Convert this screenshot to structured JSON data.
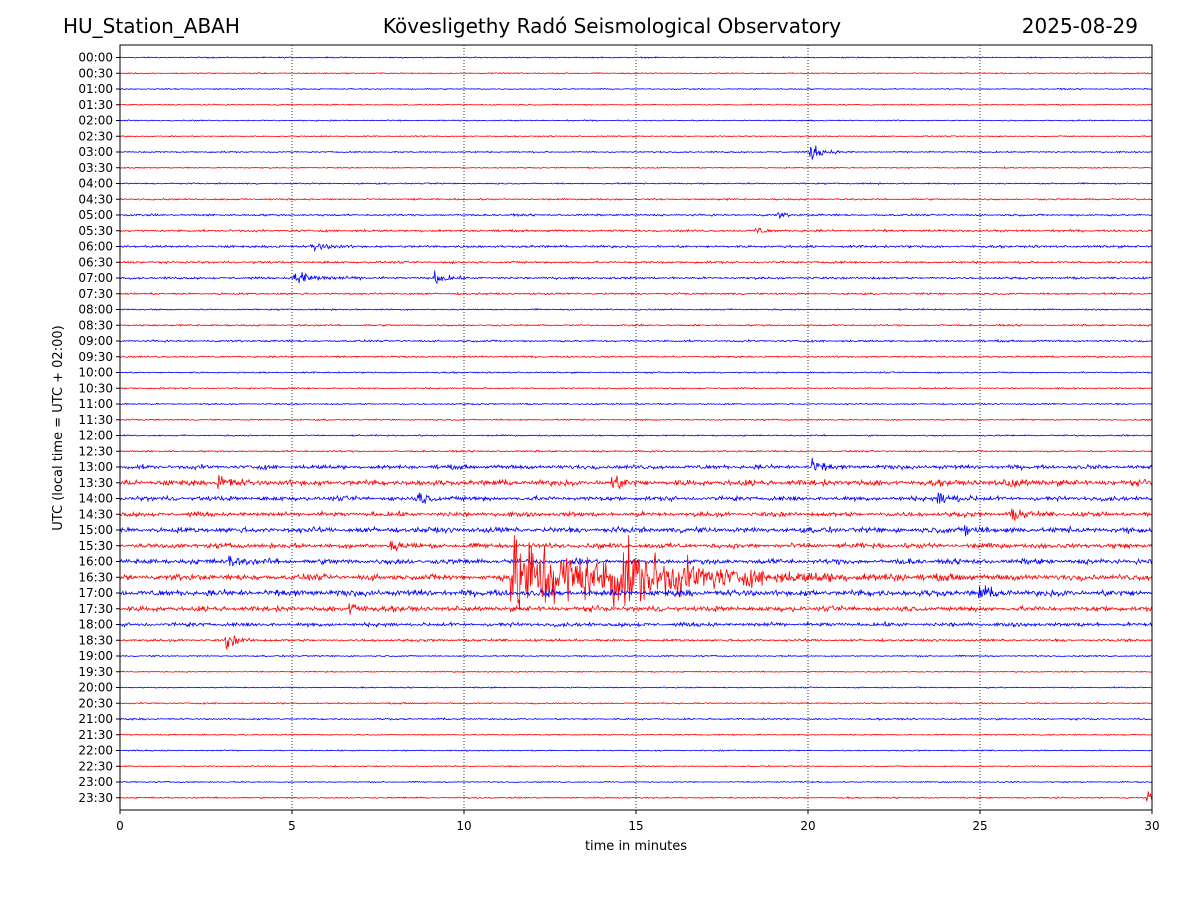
{
  "header": {
    "station": "HU_Station_ABAH",
    "observatory": "Kövesligethy Radó Seismological Observatory",
    "date": "2025-08-29"
  },
  "chart_data": {
    "type": "line",
    "title": "Kövesligethy Radó Seismological Observatory",
    "xlabel": "time in minutes",
    "ylabel": "UTC (local time = UTC + 02:00)",
    "xlim": [
      0,
      30
    ],
    "x_ticks": [
      0,
      5,
      10,
      15,
      20,
      25,
      30
    ],
    "grid_x": "dotted vertical lines at 5-minute ticks",
    "colors": {
      "even_rows": "#0000ff",
      "odd_rows": "#ff0000"
    },
    "rows": [
      "00:00",
      "00:30",
      "01:00",
      "01:30",
      "02:00",
      "02:30",
      "03:00",
      "03:30",
      "04:00",
      "04:30",
      "05:00",
      "05:30",
      "06:00",
      "06:30",
      "07:00",
      "07:30",
      "08:00",
      "08:30",
      "09:00",
      "09:30",
      "10:00",
      "10:30",
      "11:00",
      "11:30",
      "12:00",
      "12:30",
      "13:00",
      "13:30",
      "14:00",
      "14:30",
      "15:00",
      "15:30",
      "16:00",
      "16:30",
      "17:00",
      "17:30",
      "18:00",
      "18:30",
      "19:00",
      "19:30",
      "20:00",
      "20:30",
      "21:00",
      "21:30",
      "22:00",
      "22:30",
      "23:00",
      "23:30"
    ],
    "noise_level": [
      0.5,
      0.5,
      0.5,
      0.5,
      0.5,
      0.5,
      0.6,
      0.5,
      0.6,
      0.7,
      0.8,
      0.9,
      1.0,
      0.9,
      0.9,
      0.8,
      0.6,
      0.7,
      0.8,
      0.7,
      0.6,
      0.6,
      0.6,
      0.6,
      0.6,
      0.7,
      1.3,
      1.8,
      1.4,
      1.4,
      1.7,
      1.5,
      1.6,
      1.8,
      2.0,
      1.6,
      1.2,
      1.0,
      0.6,
      0.5,
      0.5,
      0.6,
      0.7,
      0.5,
      0.5,
      0.5,
      0.5,
      0.6
    ],
    "events": [
      {
        "row": "03:00",
        "minute": 20.1,
        "amplitude": 7,
        "decay": 0.3
      },
      {
        "row": "05:00",
        "minute": 19.1,
        "amplitude": 3,
        "decay": 0.2
      },
      {
        "row": "05:30",
        "minute": 18.5,
        "amplitude": 4,
        "decay": 0.2
      },
      {
        "row": "06:00",
        "minute": 5.6,
        "amplitude": 5,
        "decay": 0.3
      },
      {
        "row": "07:00",
        "minute": 5.1,
        "amplitude": 6,
        "decay": 0.6
      },
      {
        "row": "07:00",
        "minute": 9.2,
        "amplitude": 5,
        "decay": 0.3
      },
      {
        "row": "13:00",
        "minute": 20.1,
        "amplitude": 5,
        "decay": 0.3
      },
      {
        "row": "13:30",
        "minute": 2.9,
        "amplitude": 6,
        "decay": 0.3
      },
      {
        "row": "13:30",
        "minute": 14.3,
        "amplitude": 6,
        "decay": 0.3
      },
      {
        "row": "13:30",
        "minute": 25.8,
        "amplitude": 5,
        "decay": 0.3
      },
      {
        "row": "14:00",
        "minute": 8.7,
        "amplitude": 5,
        "decay": 0.3
      },
      {
        "row": "14:00",
        "minute": 23.8,
        "amplitude": 5,
        "decay": 0.4
      },
      {
        "row": "14:30",
        "minute": 25.9,
        "amplitude": 4,
        "decay": 0.4
      },
      {
        "row": "15:00",
        "minute": 24.6,
        "amplitude": 5,
        "decay": 0.3
      },
      {
        "row": "15:30",
        "minute": 7.9,
        "amplitude": 5,
        "decay": 0.3
      },
      {
        "row": "16:00",
        "minute": 3.2,
        "amplitude": 5,
        "decay": 0.3
      },
      {
        "row": "16:30",
        "minute": 11.4,
        "amplitude": 38,
        "decay": 2.5
      },
      {
        "row": "16:30",
        "minute": 14.3,
        "amplitude": 18,
        "decay": 2.0
      },
      {
        "row": "17:00",
        "minute": 25.0,
        "amplitude": 5,
        "decay": 0.3
      },
      {
        "row": "17:30",
        "minute": 6.7,
        "amplitude": 5,
        "decay": 0.3
      },
      {
        "row": "18:30",
        "minute": 3.1,
        "amplitude": 7,
        "decay": 0.25
      },
      {
        "row": "23:30",
        "minute": 29.9,
        "amplitude": 5,
        "decay": 0.1
      }
    ]
  }
}
